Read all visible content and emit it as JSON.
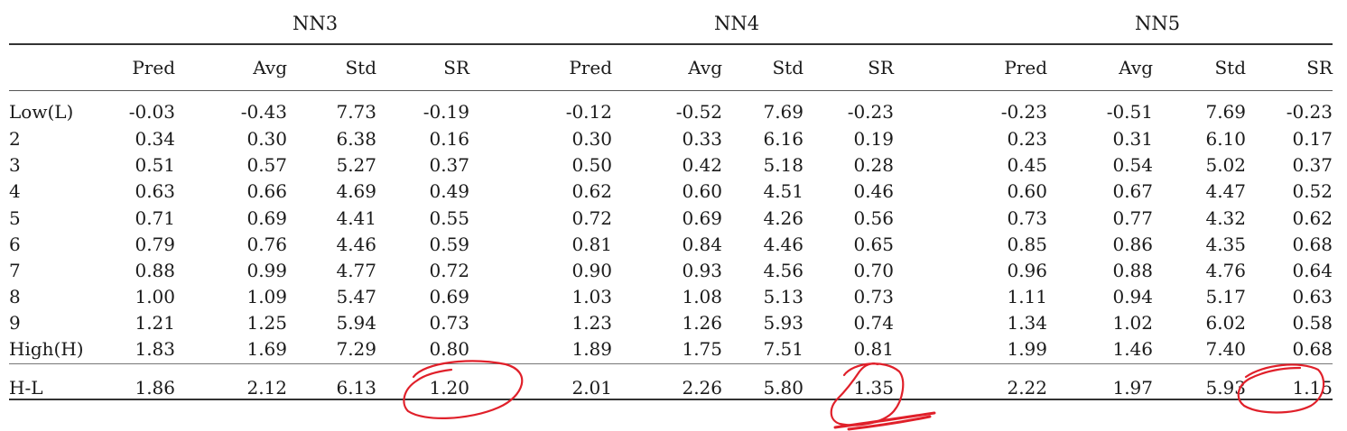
{
  "table": {
    "groups": [
      "NN3",
      "NN4",
      "NN5"
    ],
    "columns": [
      "Pred",
      "Avg",
      "Std",
      "SR",
      "Pred",
      "Avg",
      "Std",
      "SR",
      "Pred",
      "Avg",
      "Std",
      "SR"
    ],
    "rows": [
      {
        "label": "Low(L)",
        "values": [
          "-0.03",
          "-0.43",
          "7.73",
          "-0.19",
          "-0.12",
          "-0.52",
          "7.69",
          "-0.23",
          "-0.23",
          "-0.51",
          "7.69",
          "-0.23"
        ]
      },
      {
        "label": "2",
        "values": [
          "0.34",
          "0.30",
          "6.38",
          "0.16",
          "0.30",
          "0.33",
          "6.16",
          "0.19",
          "0.23",
          "0.31",
          "6.10",
          "0.17"
        ]
      },
      {
        "label": "3",
        "values": [
          "0.51",
          "0.57",
          "5.27",
          "0.37",
          "0.50",
          "0.42",
          "5.18",
          "0.28",
          "0.45",
          "0.54",
          "5.02",
          "0.37"
        ]
      },
      {
        "label": "4",
        "values": [
          "0.63",
          "0.66",
          "4.69",
          "0.49",
          "0.62",
          "0.60",
          "4.51",
          "0.46",
          "0.60",
          "0.67",
          "4.47",
          "0.52"
        ]
      },
      {
        "label": "5",
        "values": [
          "0.71",
          "0.69",
          "4.41",
          "0.55",
          "0.72",
          "0.69",
          "4.26",
          "0.56",
          "0.73",
          "0.77",
          "4.32",
          "0.62"
        ]
      },
      {
        "label": "6",
        "values": [
          "0.79",
          "0.76",
          "4.46",
          "0.59",
          "0.81",
          "0.84",
          "4.46",
          "0.65",
          "0.85",
          "0.86",
          "4.35",
          "0.68"
        ]
      },
      {
        "label": "7",
        "values": [
          "0.88",
          "0.99",
          "4.77",
          "0.72",
          "0.90",
          "0.93",
          "4.56",
          "0.70",
          "0.96",
          "0.88",
          "4.76",
          "0.64"
        ]
      },
      {
        "label": "8",
        "values": [
          "1.00",
          "1.09",
          "5.47",
          "0.69",
          "1.03",
          "1.08",
          "5.13",
          "0.73",
          "1.11",
          "0.94",
          "5.17",
          "0.63"
        ]
      },
      {
        "label": "9",
        "values": [
          "1.21",
          "1.25",
          "5.94",
          "0.73",
          "1.23",
          "1.26",
          "5.93",
          "0.74",
          "1.34",
          "1.02",
          "6.02",
          "0.58"
        ]
      },
      {
        "label": "High(H)",
        "values": [
          "1.83",
          "1.69",
          "7.29",
          "0.80",
          "1.89",
          "1.75",
          "7.51",
          "0.81",
          "1.99",
          "1.46",
          "7.40",
          "0.68"
        ]
      },
      {
        "label": "H-L",
        "values": [
          "1.86",
          "2.12",
          "6.13",
          "1.20",
          "2.01",
          "2.26",
          "5.80",
          "1.35",
          "2.22",
          "1.97",
          "5.93",
          "1.15"
        ]
      }
    ]
  },
  "annotations": {
    "color": "#e0202a",
    "circled_cells": [
      "NN3 H-L SR",
      "NN4 H-L SR",
      "NN5 H-L SR"
    ]
  }
}
